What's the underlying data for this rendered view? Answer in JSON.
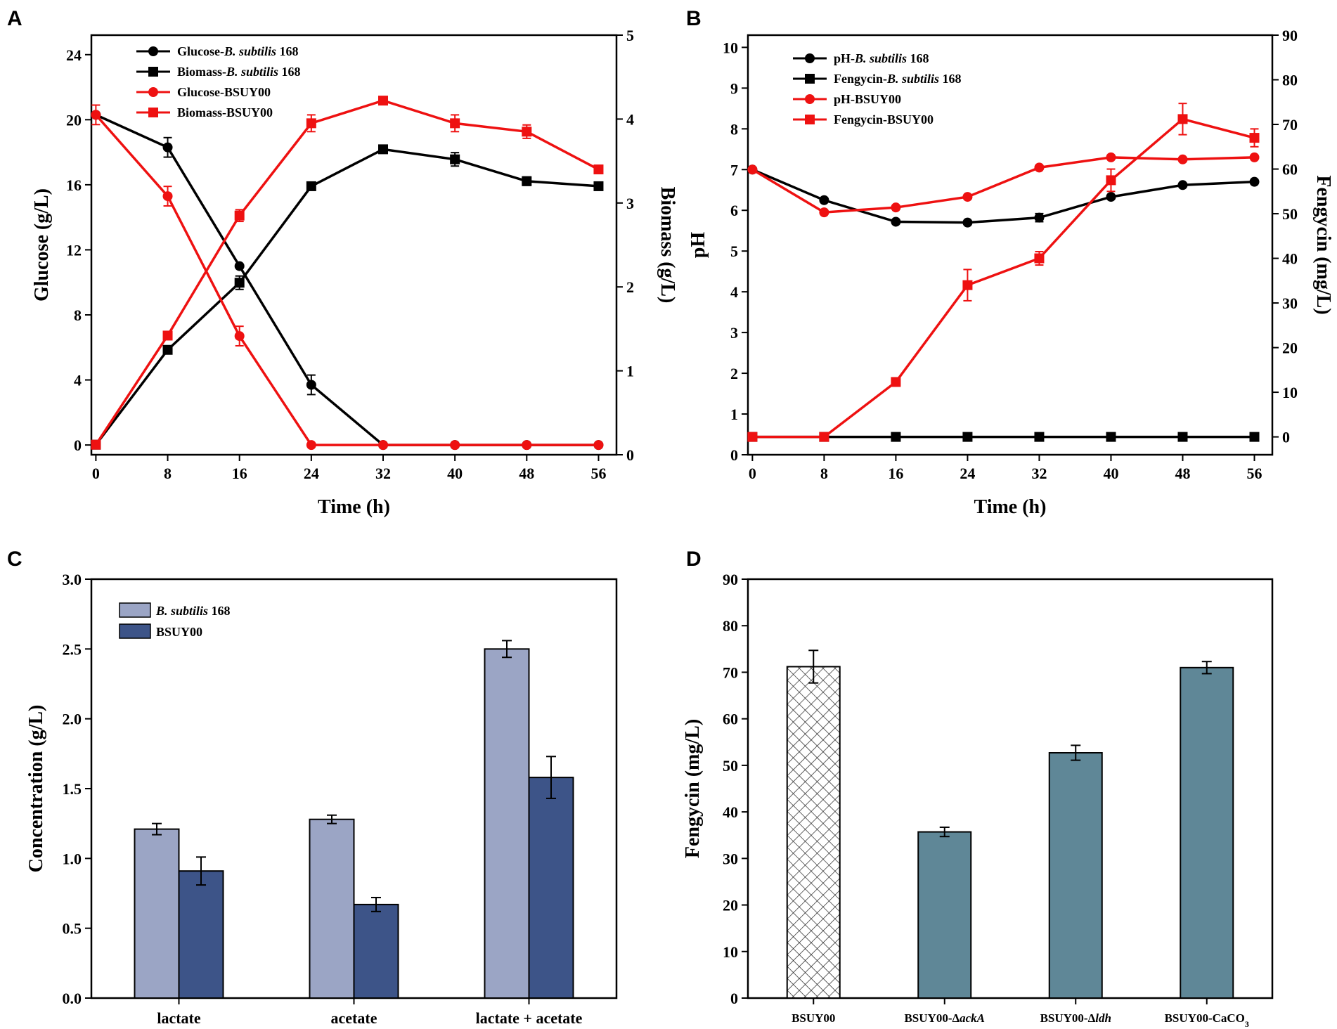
{
  "colors": {
    "black": "#000000",
    "red": "#ee1111",
    "light_bar": "#9ba5c5",
    "dark_bar": "#3d5488",
    "teal_bar": "#5f8797"
  },
  "chart_data": [
    {
      "panel": "A",
      "type": "line",
      "xlabel": "Time (h)",
      "ylabel_left": "Glucose (g/L)",
      "ylabel_right": "Biomass (g/L)",
      "x": [
        0,
        8,
        16,
        24,
        32,
        40,
        48,
        56
      ],
      "xlim": [
        -0.5,
        58
      ],
      "ylim_left": [
        -0.6,
        25.2
      ],
      "ylim_right": [
        0,
        5
      ],
      "xticks": [
        0,
        8,
        16,
        24,
        32,
        40,
        48,
        56
      ],
      "yticks_left": [
        0,
        4,
        8,
        12,
        16,
        20,
        24
      ],
      "yticks_right": [
        0,
        1,
        2,
        3,
        4,
        5
      ],
      "legend": [
        "Glucose-B. subtilis 168",
        "Biomass-B. subtilis 168",
        "Glucose-BSUY00",
        "Biomass-BSUY00"
      ],
      "series": [
        {
          "name": "Glucose-B. subtilis 168",
          "axis": "left",
          "marker": "circle",
          "color": "black",
          "values": [
            20.3,
            18.3,
            11.0,
            3.7,
            0,
            0,
            0,
            0
          ],
          "errors": [
            0,
            0.6,
            0,
            0.6,
            0,
            0,
            0,
            0
          ]
        },
        {
          "name": "Biomass-B. subtilis 168",
          "axis": "right",
          "marker": "square",
          "color": "black",
          "values": [
            0.12,
            1.25,
            2.05,
            3.2,
            3.64,
            3.52,
            3.26,
            3.2
          ],
          "errors": [
            0,
            0,
            0.08,
            0.03,
            0.02,
            0.08,
            0.05,
            0.03
          ]
        },
        {
          "name": "Glucose-BSUY00",
          "axis": "left",
          "marker": "circle",
          "color": "red",
          "values": [
            20.3,
            15.3,
            6.7,
            0,
            0,
            0,
            0,
            0
          ],
          "errors": [
            0.6,
            0.6,
            0.6,
            0,
            0,
            0,
            0,
            0
          ]
        },
        {
          "name": "Biomass-BSUY00",
          "axis": "right",
          "marker": "square",
          "color": "red",
          "values": [
            0.12,
            1.42,
            2.85,
            3.95,
            4.22,
            3.95,
            3.85,
            3.4
          ],
          "errors": [
            0,
            0,
            0.07,
            0.1,
            0.03,
            0.1,
            0.08,
            0.04
          ]
        }
      ]
    },
    {
      "panel": "B",
      "type": "line",
      "xlabel": "Time (h)",
      "ylabel_left": "pH",
      "ylabel_right": "Fengycin (mg/L)",
      "x": [
        0,
        8,
        16,
        24,
        32,
        40,
        48,
        56
      ],
      "xlim": [
        -0.5,
        58
      ],
      "ylim_left": [
        0,
        10.3
      ],
      "ylim_right": [
        -4,
        90
      ],
      "xticks": [
        0,
        8,
        16,
        24,
        32,
        40,
        48,
        56
      ],
      "yticks_left": [
        0,
        1,
        2,
        3,
        4,
        5,
        6,
        7,
        8,
        9,
        10
      ],
      "yticks_right": [
        0,
        10,
        20,
        30,
        40,
        50,
        60,
        70,
        80,
        90
      ],
      "legend": [
        "pH-B. subtilis 168",
        "Fengycin-B. subtilis 168",
        "pH-BSUY00",
        "Fengycin-BSUY00"
      ],
      "series": [
        {
          "name": "pH-B. subtilis 168",
          "axis": "left",
          "marker": "circle",
          "color": "black",
          "values": [
            7.0,
            6.25,
            5.72,
            5.7,
            5.82,
            6.33,
            6.62,
            6.7
          ],
          "errors": [
            0,
            0,
            0,
            0,
            0.1,
            0,
            0,
            0
          ]
        },
        {
          "name": "Fengycin-B. subtilis 168",
          "axis": "right",
          "marker": "square",
          "color": "black",
          "values": [
            0,
            0,
            0,
            0,
            0,
            0,
            0,
            0
          ],
          "errors": [
            0,
            0,
            0,
            0,
            0,
            0,
            0,
            0
          ]
        },
        {
          "name": "pH-BSUY00",
          "axis": "left",
          "marker": "circle",
          "color": "red",
          "values": [
            7.0,
            5.95,
            6.07,
            6.33,
            7.05,
            7.3,
            7.25,
            7.3
          ],
          "errors": [
            0,
            0,
            0,
            0,
            0,
            0,
            0,
            0
          ]
        },
        {
          "name": "Fengycin-BSUY00",
          "axis": "right",
          "marker": "square",
          "color": "red",
          "values": [
            0,
            0,
            12.3,
            34,
            40,
            57.5,
            71.2,
            67
          ],
          "errors": [
            0,
            0,
            0,
            3.5,
            1.5,
            2.5,
            3.5,
            2
          ]
        }
      ]
    },
    {
      "panel": "C",
      "type": "bar",
      "ylabel": "Concentration (g/L)",
      "categories": [
        "lactate",
        "acetate",
        "lactate + acetate"
      ],
      "ylim": [
        0,
        3.0
      ],
      "yticks": [
        "0.0",
        "0.5",
        "1.0",
        "1.5",
        "2.0",
        "2.5",
        "3.0"
      ],
      "legend": [
        "B. subtilis 168",
        "BSUY00"
      ],
      "series": [
        {
          "name": "B. subtilis 168",
          "color": "light_bar",
          "values": [
            1.21,
            1.28,
            2.5
          ],
          "errors": [
            0.04,
            0.03,
            0.06
          ]
        },
        {
          "name": "BSUY00",
          "color": "dark_bar",
          "values": [
            0.91,
            0.67,
            1.58
          ],
          "errors": [
            0.1,
            0.05,
            0.15
          ]
        }
      ]
    },
    {
      "panel": "D",
      "type": "bar",
      "ylabel": "Fengycin (mg/L)",
      "categories": [
        "BSUY00",
        "BSUY00-ΔackA",
        "BSUY00-Δldh",
        "BSUY00-CaCO3"
      ],
      "ylim": [
        0,
        90
      ],
      "yticks": [
        "0",
        "10",
        "20",
        "30",
        "40",
        "50",
        "60",
        "70",
        "80",
        "90"
      ],
      "series": [
        {
          "name": "Fengycin",
          "values": [
            71.2,
            35.7,
            52.7,
            71.0
          ],
          "errors": [
            3.5,
            1.0,
            1.6,
            1.3
          ],
          "fills": [
            "hatch",
            "teal_bar",
            "teal_bar",
            "teal_bar"
          ]
        }
      ]
    }
  ]
}
